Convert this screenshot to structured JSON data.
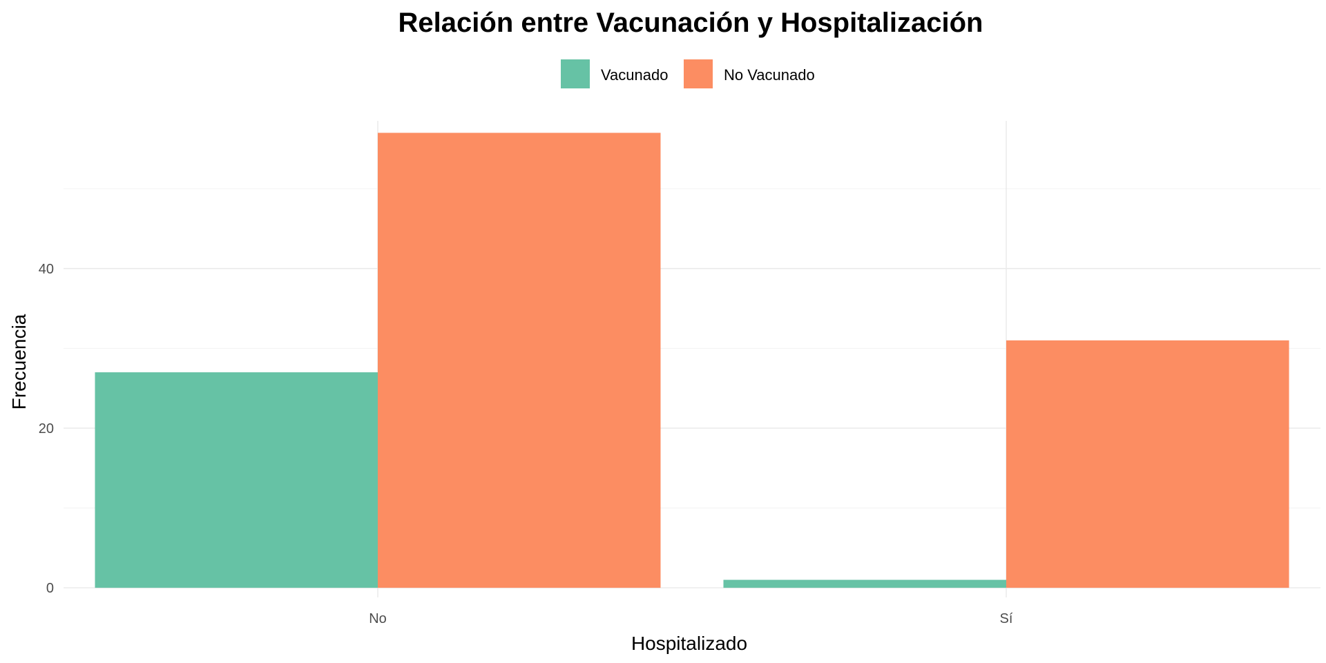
{
  "chart_data": {
    "type": "bar",
    "title": "Relación entre Vacunación y Hospitalización",
    "xlabel": "Hospitalizado",
    "ylabel": "Frecuencia",
    "categories": [
      "No",
      "Sí"
    ],
    "series": [
      {
        "name": "Vacunado",
        "color": "#66c2a5",
        "values": [
          27,
          1
        ]
      },
      {
        "name": "No Vacunado",
        "color": "#fc8d62",
        "values": [
          57,
          31
        ]
      }
    ],
    "ylim": [
      -1.2,
      58.5
    ],
    "yticks": [
      0,
      20,
      40
    ],
    "grid": true,
    "legend_position": "top"
  }
}
